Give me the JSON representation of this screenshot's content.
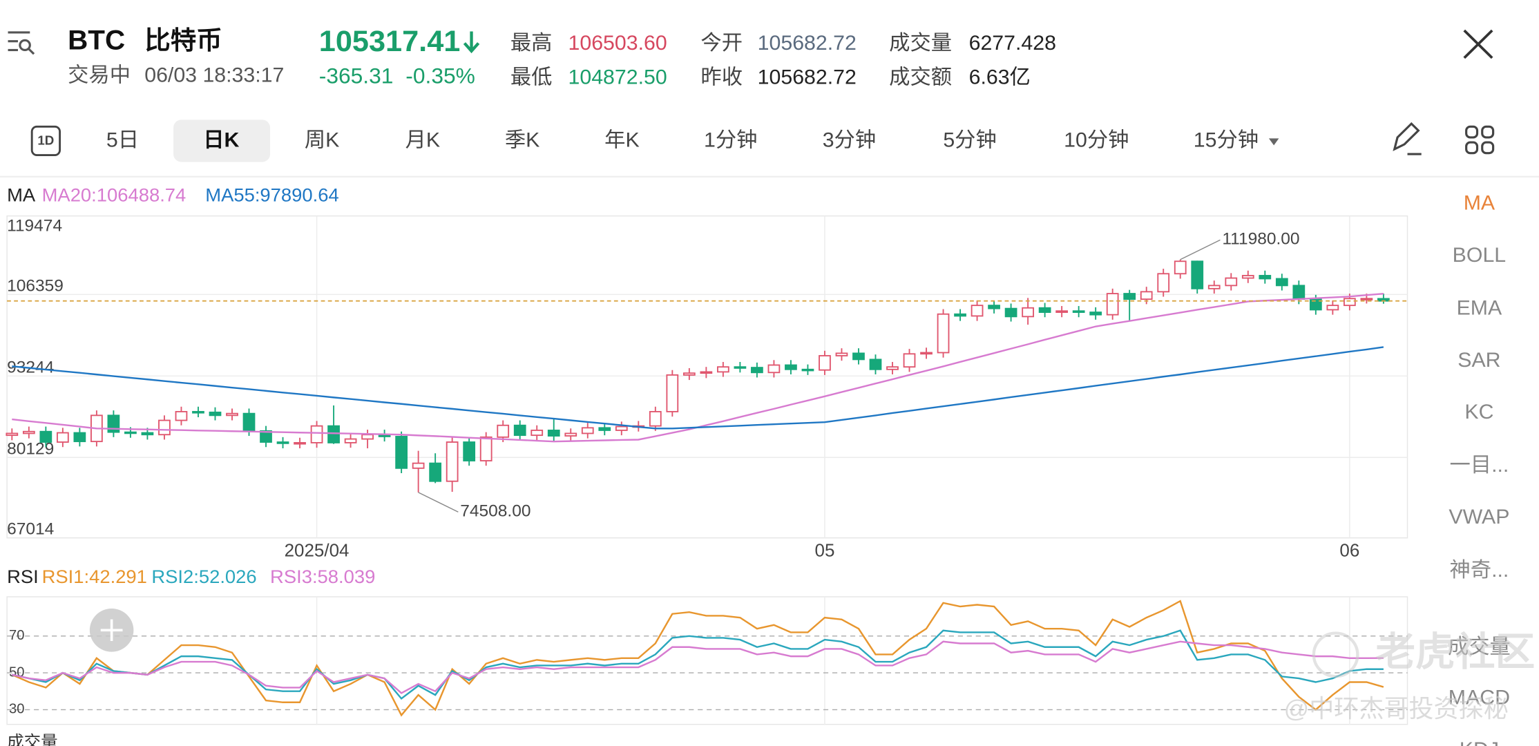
{
  "header": {
    "symbol": "BTC",
    "name": "比特币",
    "status": "交易中",
    "time": "06/03 18:33:17",
    "price": "105317.41",
    "change": "-365.31",
    "change_pct": "-0.35%",
    "stats": [
      {
        "label": "最高",
        "value": "106503.60"
      },
      {
        "label": "最低",
        "value": "104872.50"
      },
      {
        "label": "今开",
        "value": "105682.72"
      },
      {
        "label": "昨收",
        "value": "105682.72"
      },
      {
        "label": "成交量",
        "value": "6277.428"
      },
      {
        "label": "成交额",
        "value": "6.63亿"
      }
    ]
  },
  "tabs": {
    "icon": "1D",
    "items": [
      "5日",
      "日K",
      "周K",
      "月K",
      "季K",
      "年K",
      "1分钟",
      "3分钟",
      "5分钟",
      "10分钟",
      "15分钟"
    ],
    "selected": "日K"
  },
  "indicators": {
    "items": [
      "MA",
      "BOLL",
      "EMA",
      "SAR",
      "KC",
      "一目...",
      "VWAP",
      "神奇...",
      "成交量",
      "MACD",
      "KDJ"
    ],
    "active": "MA"
  },
  "watermark": [
    "老虎社区",
    "@中环杰哥投资探秘"
  ],
  "bottom_label": "成交量",
  "chart_data": [
    {
      "type": "candlestick",
      "label": "MA",
      "categories": [
        null,
        null,
        null,
        null,
        null,
        null,
        null,
        null,
        null,
        null,
        null,
        null,
        null,
        null,
        null,
        null,
        null,
        null,
        "2025/04",
        null,
        null,
        null,
        null,
        null,
        null,
        null,
        null,
        null,
        null,
        null,
        null,
        null,
        null,
        null,
        null,
        null,
        null,
        null,
        null,
        null,
        null,
        null,
        null,
        null,
        null,
        null,
        null,
        null,
        "05",
        null,
        null,
        null,
        null,
        null,
        null,
        null,
        null,
        null,
        null,
        null,
        null,
        null,
        null,
        null,
        null,
        null,
        null,
        null,
        null,
        null,
        null,
        null,
        null,
        null,
        null,
        null,
        null,
        null,
        null,
        "06",
        null,
        null
      ],
      "open": [
        83700,
        84000,
        84300,
        82600,
        84100,
        82700,
        86900,
        84200,
        84100,
        83800,
        86100,
        87500,
        87400,
        86900,
        87200,
        84400,
        82600,
        82400,
        82500,
        85200,
        82500,
        83100,
        83800,
        83500,
        78400,
        79200,
        76300,
        82600,
        79600,
        83400,
        85300,
        83700,
        84500,
        83600,
        84000,
        84900,
        84500,
        85100,
        85200,
        87500,
        93400,
        93700,
        93900,
        94700,
        94600,
        93800,
        95000,
        94300,
        94200,
        96500,
        96900,
        95900,
        94300,
        94700,
        96800,
        97000,
        103200,
        102900,
        104600,
        104100,
        102800,
        104200,
        103500,
        103700,
        103500,
        103100,
        106500,
        105600,
        106800,
        109700,
        111700,
        107300,
        107800,
        109000,
        109400,
        108900,
        107800,
        105600,
        103900,
        104600,
        105700,
        105682.72
      ],
      "high": [
        84800,
        85100,
        85100,
        84900,
        84900,
        87700,
        87700,
        85000,
        84900,
        86900,
        88300,
        88300,
        88200,
        88000,
        88000,
        85200,
        83400,
        83300,
        86000,
        88500,
        83900,
        84600,
        84600,
        84300,
        81200,
        80800,
        83500,
        83400,
        84200,
        86100,
        86100,
        85300,
        86400,
        84800,
        85700,
        85700,
        85900,
        86000,
        88300,
        94200,
        94500,
        94700,
        95500,
        95500,
        95400,
        95800,
        95800,
        95100,
        97300,
        97700,
        97700,
        96700,
        95500,
        97600,
        97800,
        104000,
        104000,
        105400,
        105400,
        104900,
        105800,
        105000,
        104500,
        104500,
        104300,
        107300,
        107100,
        107600,
        110500,
        111980,
        111800,
        108600,
        109800,
        110200,
        110200,
        109700,
        108600,
        106300,
        105400,
        106500,
        106500,
        106503.6
      ],
      "low": [
        82900,
        83200,
        81800,
        81800,
        81900,
        81900,
        83400,
        83300,
        83000,
        83000,
        85300,
        86600,
        86100,
        86100,
        83600,
        81800,
        81600,
        81600,
        81700,
        82300,
        81700,
        81600,
        82700,
        77600,
        74508,
        76000,
        74600,
        78800,
        78800,
        82600,
        82900,
        82900,
        82800,
        82800,
        83200,
        83700,
        83700,
        84300,
        84400,
        86700,
        92600,
        92900,
        93100,
        93800,
        93000,
        93000,
        93500,
        93400,
        93400,
        95700,
        95100,
        93500,
        93500,
        93900,
        96000,
        96200,
        102100,
        102100,
        103300,
        102000,
        101500,
        102700,
        102700,
        102700,
        102300,
        102300,
        102000,
        104800,
        106000,
        108900,
        106500,
        106500,
        107000,
        108200,
        108100,
        107000,
        104800,
        103100,
        103100,
        103800,
        104900,
        104872.5
      ],
      "close": [
        84000,
        84300,
        82600,
        84100,
        82700,
        86900,
        84200,
        84100,
        83800,
        86100,
        87500,
        87400,
        86900,
        87200,
        84400,
        82600,
        82400,
        82500,
        85200,
        82500,
        83100,
        83800,
        83500,
        78400,
        79200,
        76300,
        82600,
        79600,
        83400,
        85300,
        83700,
        84500,
        83600,
        84000,
        84900,
        84500,
        85100,
        85200,
        87500,
        93400,
        93700,
        93900,
        94700,
        94600,
        93800,
        95000,
        94300,
        94200,
        96500,
        96900,
        95900,
        94300,
        94700,
        96800,
        97000,
        103200,
        102900,
        104600,
        104100,
        102800,
        104200,
        103500,
        103700,
        103500,
        103100,
        106500,
        105600,
        106800,
        109700,
        111700,
        107300,
        107800,
        109000,
        109400,
        108900,
        107800,
        105600,
        103900,
        104600,
        105700,
        105700,
        105317.41
      ],
      "up_color": "#e0566e",
      "down_color": "#16a87a",
      "price_line_color": "#d9a441",
      "grid": true,
      "series": [
        {
          "name": "MA20:106488.74",
          "color": "#d77bd0",
          "values": [
            86260,
            85970,
            85680,
            85390,
            85100,
            84800,
            84740,
            84690,
            84630,
            84580,
            84520,
            84470,
            84410,
            84360,
            84300,
            84240,
            84190,
            84130,
            84080,
            84020,
            83970,
            83910,
            83860,
            83800,
            83680,
            83560,
            83430,
            83310,
            83190,
            83070,
            82940,
            82820,
            82700,
            82760,
            82820,
            82880,
            82940,
            83000,
            83550,
            84100,
            84650,
            85310,
            85970,
            86640,
            87300,
            87960,
            88630,
            89290,
            89960,
            90650,
            91340,
            92030,
            92710,
            93400,
            94090,
            94780,
            95500,
            96210,
            96930,
            97640,
            98350,
            99070,
            99780,
            100500,
            101210,
            101660,
            102100,
            102550,
            103000,
            103440,
            103890,
            104340,
            104780,
            105230,
            105360,
            105490,
            105620,
            105760,
            105890,
            106020,
            106260,
            106488.74
          ]
        },
        {
          "name": "MA55:97890.64",
          "color": "#1f77c4",
          "values": [
            94800,
            94540,
            94270,
            94010,
            93750,
            93480,
            93220,
            92950,
            92690,
            92430,
            92160,
            91900,
            91640,
            91370,
            91110,
            90850,
            90580,
            90320,
            90060,
            89790,
            89530,
            89260,
            89000,
            88740,
            88470,
            88210,
            87950,
            87680,
            87420,
            87160,
            86890,
            86630,
            86370,
            86100,
            85840,
            85580,
            85310,
            85050,
            84800,
            84800,
            84910,
            85020,
            85130,
            85240,
            85360,
            85470,
            85580,
            85690,
            85800,
            86170,
            86530,
            86900,
            87270,
            87630,
            88000,
            88360,
            88730,
            89100,
            89460,
            89830,
            90200,
            90560,
            90930,
            91290,
            91660,
            92030,
            92390,
            92760,
            93130,
            93490,
            93860,
            94220,
            94590,
            94960,
            95320,
            95690,
            96060,
            96420,
            96790,
            97160,
            97520,
            97890.64
          ]
        }
      ],
      "ylim": [
        67181,
        118997
      ],
      "yticks": [
        67014,
        80129,
        93244,
        106359,
        119474
      ],
      "annotations": [
        {
          "label": "111980.00",
          "value": 111980
        },
        {
          "label": "74508.00",
          "value": 74508
        }
      ]
    },
    {
      "type": "line",
      "label": "RSI",
      "grid": true,
      "series": [
        {
          "name": "RSI1:42.291",
          "color": "#e8962e",
          "values": [
            49,
            45,
            42,
            50,
            44,
            58,
            51,
            50,
            49,
            57,
            65,
            65,
            64,
            61,
            48,
            35,
            34,
            34,
            54,
            40,
            44,
            49,
            45,
            27,
            38,
            30,
            52,
            44,
            55,
            58,
            55,
            57,
            56,
            57,
            58,
            57,
            58,
            58,
            66,
            82,
            83,
            81,
            81,
            80,
            74,
            76,
            72,
            72,
            80,
            79,
            74,
            60,
            60,
            68,
            74,
            88,
            86,
            87,
            86,
            76,
            78,
            74,
            74,
            73,
            65,
            79,
            75,
            80,
            84,
            89,
            61,
            63,
            66,
            66,
            62,
            47,
            37,
            30,
            38,
            45,
            45,
            42.291
          ]
        },
        {
          "name": "RSI2:52.026",
          "color": "#2aa7bd",
          "values": [
            49,
            47,
            45,
            50,
            46,
            55,
            51,
            50,
            49,
            54,
            59,
            59,
            58,
            57,
            49,
            41,
            40,
            40,
            52,
            44,
            46,
            49,
            47,
            36,
            43,
            38,
            51,
            46,
            53,
            55,
            53,
            54,
            54,
            54,
            55,
            54,
            55,
            55,
            60,
            69,
            70,
            69,
            69,
            68,
            64,
            66,
            63,
            63,
            68,
            67,
            64,
            56,
            56,
            61,
            64,
            73,
            72,
            72,
            72,
            66,
            67,
            64,
            64,
            64,
            59,
            67,
            65,
            68,
            70,
            73,
            57,
            58,
            60,
            60,
            57,
            48,
            47,
            45,
            47,
            51,
            52,
            52.026
          ]
        },
        {
          "name": "RSI3:58.039",
          "color": "#d77bd0",
          "values": [
            49,
            47,
            46,
            50,
            47,
            53,
            50,
            50,
            49,
            53,
            56,
            56,
            56,
            54,
            49,
            43,
            42,
            42,
            51,
            45,
            47,
            49,
            47,
            39,
            44,
            40,
            50,
            47,
            52,
            53,
            52,
            53,
            52,
            53,
            53,
            53,
            53,
            53,
            57,
            64,
            64,
            63,
            63,
            63,
            60,
            61,
            59,
            59,
            63,
            63,
            60,
            54,
            54,
            58,
            60,
            67,
            66,
            66,
            66,
            61,
            62,
            60,
            60,
            60,
            56,
            63,
            61,
            63,
            65,
            67,
            66,
            65,
            65,
            64,
            63,
            61,
            60,
            59,
            59,
            58,
            58,
            58.039
          ]
        }
      ],
      "ylim": [
        22,
        91.3
      ],
      "yticks": [
        30,
        50,
        70
      ]
    }
  ]
}
